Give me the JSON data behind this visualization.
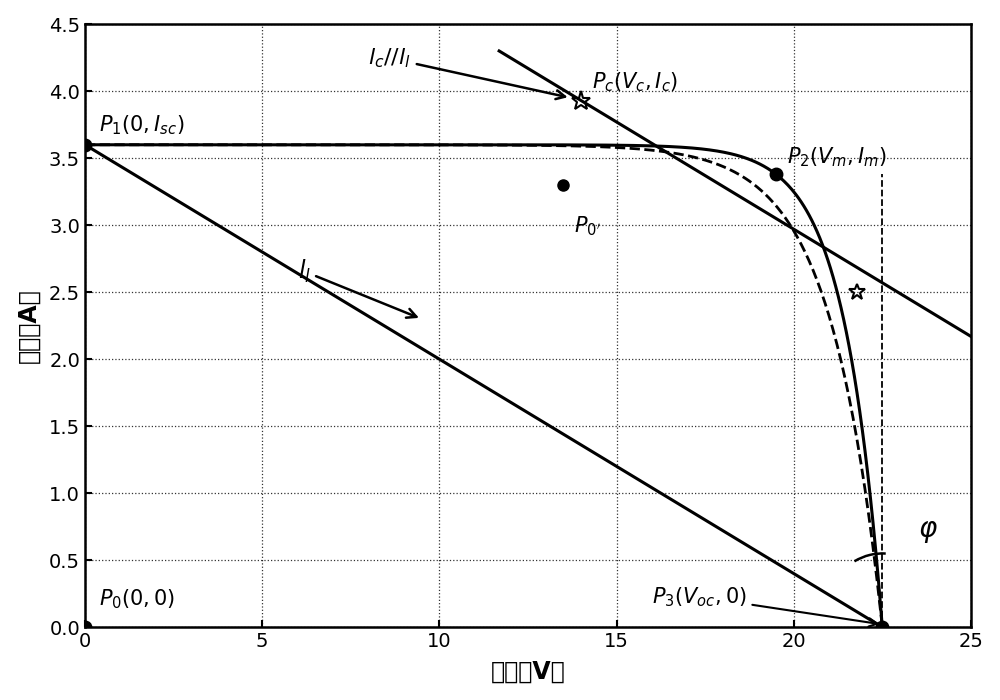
{
  "xlabel": "电压（V）",
  "ylabel": "电流（A）",
  "xlim": [
    0,
    25
  ],
  "ylim": [
    0,
    4.5
  ],
  "xticks": [
    0,
    5,
    10,
    15,
    20,
    25
  ],
  "yticks": [
    0,
    0.5,
    1.0,
    1.5,
    2.0,
    2.5,
    3.0,
    3.5,
    4.0,
    4.5
  ],
  "Isc": 3.6,
  "Voc": 22.5,
  "Vm": 19.5,
  "Im": 3.38,
  "Vc": 14.0,
  "Ic": 3.93,
  "P0_prime_x": 13.5,
  "P0_prime_y": 3.3,
  "star2_V": 21.8,
  "star2_I": 2.5
}
